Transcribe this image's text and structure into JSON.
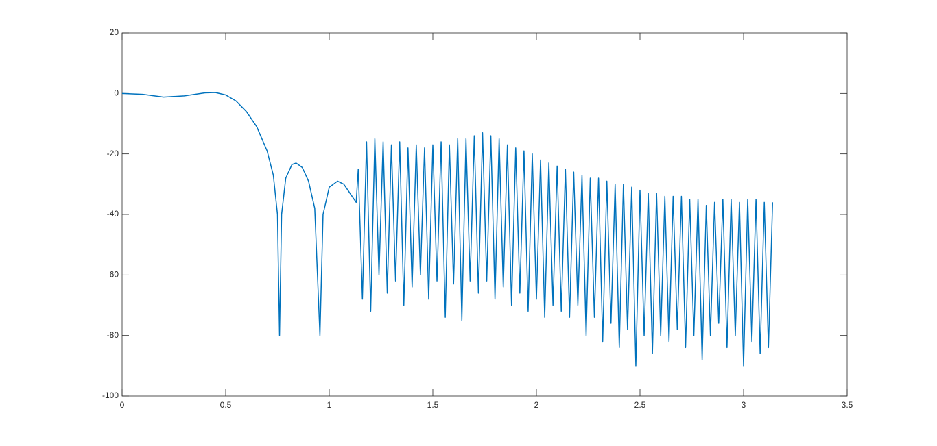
{
  "chart_data": {
    "type": "line",
    "color": "#0072bd",
    "xlim": [
      0,
      3.5
    ],
    "xticks": [
      0,
      0.5,
      1,
      1.5,
      2,
      2.5,
      3,
      3.5
    ],
    "ylim": [
      -100,
      20
    ],
    "yticks": [
      -100,
      -80,
      -60,
      -40,
      -20,
      0,
      20
    ],
    "x": [
      0,
      0.1,
      0.2,
      0.3,
      0.4,
      0.45,
      0.5,
      0.55,
      0.6,
      0.65,
      0.7,
      0.73,
      0.75,
      0.76,
      0.77,
      0.79,
      0.82,
      0.84,
      0.87,
      0.9,
      0.93,
      0.955,
      0.97,
      1.0,
      1.04,
      1.07,
      1.1,
      1.13,
      1.14,
      1.16,
      1.18,
      1.2,
      1.22,
      1.24,
      1.26,
      1.28,
      1.3,
      1.32,
      1.34,
      1.36,
      1.38,
      1.4,
      1.42,
      1.44,
      1.46,
      1.48,
      1.5,
      1.52,
      1.54,
      1.56,
      1.58,
      1.6,
      1.62,
      1.64,
      1.66,
      1.68,
      1.7,
      1.72,
      1.74,
      1.76,
      1.78,
      1.8,
      1.82,
      1.84,
      1.86,
      1.88,
      1.9,
      1.92,
      1.94,
      1.96,
      1.98,
      2.0,
      2.02,
      2.04,
      2.06,
      2.08,
      2.1,
      2.12,
      2.14,
      2.16,
      2.18,
      2.2,
      2.22,
      2.24,
      2.26,
      2.28,
      2.3,
      2.32,
      2.34,
      2.36,
      2.38,
      2.4,
      2.42,
      2.44,
      2.46,
      2.48,
      2.5,
      2.52,
      2.54,
      2.56,
      2.58,
      2.6,
      2.62,
      2.64,
      2.66,
      2.68,
      2.7,
      2.72,
      2.74,
      2.76,
      2.78,
      2.8,
      2.82,
      2.84,
      2.86,
      2.88,
      2.9,
      2.92,
      2.94,
      2.96,
      2.98,
      3.0,
      3.02,
      3.04,
      3.06,
      3.08,
      3.1,
      3.12,
      3.14
    ],
    "values": [
      0,
      -0.3,
      -1.2,
      -0.8,
      0.2,
      0.3,
      -0.5,
      -2.5,
      -6,
      -11,
      -19,
      -27,
      -40,
      -80,
      -40,
      -28,
      -23.5,
      -23,
      -24.5,
      -29,
      -38,
      -80,
      -40,
      -31,
      -29,
      -30,
      -33,
      -36,
      -25,
      -68,
      -16,
      -72,
      -15,
      -60,
      -16,
      -66,
      -17,
      -62,
      -16,
      -70,
      -18,
      -64,
      -17,
      -60,
      -18,
      -68,
      -17,
      -62,
      -16,
      -74,
      -17,
      -63,
      -15,
      -75,
      -15,
      -62,
      -14,
      -66,
      -13,
      -62,
      -14,
      -68,
      -15,
      -64,
      -17,
      -70,
      -18,
      -66,
      -19,
      -72,
      -20,
      -68,
      -22,
      -74,
      -23,
      -70,
      -24,
      -72,
      -25,
      -74,
      -26,
      -70,
      -27,
      -80,
      -28,
      -74,
      -28,
      -82,
      -29,
      -76,
      -30,
      -84,
      -30,
      -78,
      -31,
      -90,
      -32,
      -80,
      -33,
      -86,
      -33,
      -80,
      -34,
      -82,
      -34,
      -78,
      -34,
      -84,
      -35,
      -80,
      -35,
      -88,
      -37,
      -80,
      -36,
      -76,
      -35,
      -84,
      -35,
      -80,
      -36,
      -90,
      -35,
      -82,
      -35,
      -86,
      -36,
      -84,
      -36
    ]
  }
}
